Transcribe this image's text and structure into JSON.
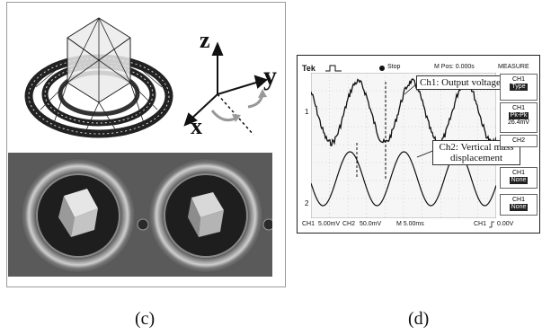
{
  "figure_c": {
    "caption": "(c)",
    "axes": {
      "z": "z",
      "y": "y",
      "x": "x"
    }
  },
  "figure_d": {
    "caption": "(d)",
    "scope": {
      "brand": "Tek",
      "status": "Stop",
      "m_pos": "M Pos: 0.000s",
      "menu_title": "MEASURE",
      "measure_boxes": [
        {
          "ch": "CH1",
          "value": "Type",
          "extra": ""
        },
        {
          "ch": "CH1",
          "value": "Pk-Pk",
          "extra": "26.4mV"
        },
        {
          "ch": "CH2",
          "value": "",
          "extra": ""
        },
        {
          "ch": "CH1",
          "value": "None",
          "extra": ""
        },
        {
          "ch": "CH1",
          "value": "None",
          "extra": ""
        }
      ],
      "bottom_bar": {
        "ch1": "CH1",
        "ch1_scale": "5.00mV",
        "ch2": "CH2",
        "ch2_scale": "50.0mV",
        "timebase": "M 5.00ms",
        "trig_ch": "CH1",
        "trig_level": "0.00V"
      },
      "ch1_marker": "1",
      "ch2_marker": "2"
    },
    "callouts": {
      "ch1": "Ch1: Output voltage",
      "ch2_line1": "Ch2: Vertical mass",
      "ch2_line2": "displacement"
    }
  }
}
